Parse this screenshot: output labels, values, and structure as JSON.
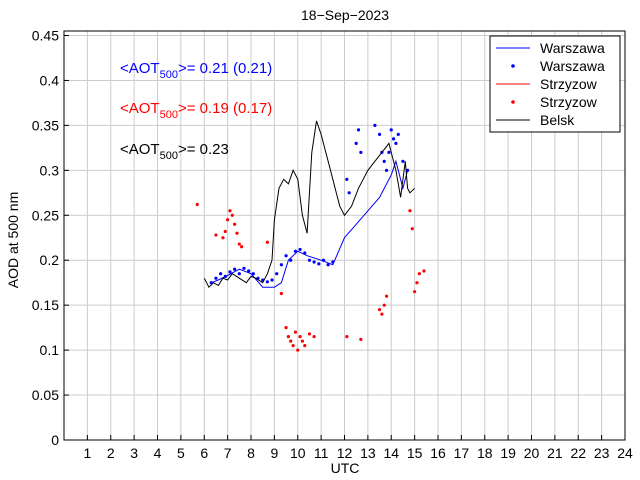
{
  "chart_data": {
    "type": "line",
    "title": "18−Sep−2023",
    "xlabel": "UTC",
    "ylabel": "AOD at 500 nm",
    "xlim": [
      0,
      24
    ],
    "ylim": [
      0,
      0.455
    ],
    "x_ticks": [
      1,
      2,
      3,
      4,
      5,
      6,
      7,
      8,
      9,
      10,
      11,
      12,
      13,
      14,
      15,
      16,
      17,
      18,
      19,
      20,
      21,
      22,
      23,
      24
    ],
    "y_ticks": [
      0,
      0.05,
      0.1,
      0.15,
      0.2,
      0.25,
      0.3,
      0.35,
      0.4,
      0.45
    ],
    "y_tick_labels": [
      "0",
      "0.05",
      "0.1",
      "0.15",
      "0.2",
      "0.25",
      "0.3",
      "0.35",
      "0.4",
      "0.45"
    ],
    "grid": true,
    "legend_position": "top-right",
    "annotations": [
      {
        "prefix": "<AOT",
        "sub": "500",
        "suffix": ">= 0.21 (0.21)",
        "color": "#0000ff"
      },
      {
        "prefix": "<AOT",
        "sub": "500",
        "suffix": ">= 0.19 (0.17)",
        "color": "#ff0000"
      },
      {
        "prefix": "<AOT",
        "sub": "500",
        "suffix": ">= 0.23",
        "color": "#000000"
      }
    ],
    "series": [
      {
        "name": "Warszawa",
        "style": "line",
        "color": "#0000ff",
        "x": [
          6.3,
          6.6,
          7.0,
          7.5,
          8.0,
          8.5,
          9.0,
          9.3,
          9.6,
          10.0,
          10.4,
          11.0,
          11.5,
          12.0,
          12.5,
          13.0,
          13.5,
          14.0,
          14.2,
          14.5,
          14.7
        ],
        "y": [
          0.175,
          0.178,
          0.183,
          0.19,
          0.185,
          0.17,
          0.17,
          0.175,
          0.2,
          0.21,
          0.205,
          0.2,
          0.195,
          0.225,
          0.24,
          0.255,
          0.27,
          0.295,
          0.31,
          0.28,
          0.3
        ]
      },
      {
        "name": "Warszawa",
        "style": "dots",
        "color": "#0000ff",
        "x": [
          6.3,
          6.5,
          6.7,
          6.9,
          7.1,
          7.3,
          7.5,
          7.7,
          7.9,
          8.1,
          8.3,
          8.5,
          8.7,
          8.9,
          9.1,
          9.3,
          9.5,
          9.7,
          9.9,
          10.1,
          10.3,
          10.5,
          10.7,
          10.9,
          11.1,
          11.3,
          11.5,
          12.1,
          12.2,
          12.5,
          12.6,
          12.7,
          13.3,
          13.5,
          13.6,
          13.7,
          13.8,
          13.9,
          14.0,
          14.1,
          14.2,
          14.3,
          14.5,
          14.7
        ],
        "y": [
          0.175,
          0.18,
          0.185,
          0.182,
          0.187,
          0.19,
          0.185,
          0.191,
          0.188,
          0.185,
          0.18,
          0.178,
          0.176,
          0.178,
          0.185,
          0.195,
          0.205,
          0.2,
          0.21,
          0.212,
          0.208,
          0.2,
          0.198,
          0.196,
          0.2,
          0.195,
          0.198,
          0.29,
          0.275,
          0.33,
          0.345,
          0.32,
          0.35,
          0.34,
          0.32,
          0.31,
          0.3,
          0.32,
          0.345,
          0.335,
          0.33,
          0.34,
          0.31,
          0.3
        ]
      },
      {
        "name": "Strzyzow",
        "style": "line",
        "color": "#ff0000",
        "x": [],
        "y": []
      },
      {
        "name": "Strzyzow",
        "style": "dots",
        "color": "#ff0000",
        "x": [
          5.7,
          6.5,
          6.8,
          6.9,
          7.0,
          7.1,
          7.2,
          7.3,
          7.4,
          7.5,
          7.6,
          8.7,
          9.3,
          9.5,
          9.6,
          9.7,
          9.8,
          9.9,
          10.0,
          10.1,
          10.2,
          10.3,
          10.5,
          10.7,
          12.1,
          12.7,
          13.5,
          13.6,
          13.7,
          13.8,
          14.8,
          14.9,
          15.0,
          15.1,
          15.2,
          15.4
        ],
        "y": [
          0.262,
          0.228,
          0.225,
          0.232,
          0.245,
          0.255,
          0.25,
          0.24,
          0.23,
          0.218,
          0.215,
          0.22,
          0.163,
          0.125,
          0.115,
          0.11,
          0.105,
          0.12,
          0.1,
          0.115,
          0.11,
          0.105,
          0.118,
          0.115,
          0.115,
          0.112,
          0.145,
          0.14,
          0.15,
          0.16,
          0.255,
          0.235,
          0.165,
          0.175,
          0.185,
          0.188
        ]
      },
      {
        "name": "Belsk",
        "style": "line",
        "color": "#000000",
        "x": [
          6.0,
          6.2,
          6.4,
          6.6,
          6.8,
          7.0,
          7.2,
          7.5,
          7.8,
          8.0,
          8.2,
          8.5,
          8.7,
          8.9,
          9.0,
          9.2,
          9.4,
          9.6,
          9.8,
          10.0,
          10.2,
          10.4,
          10.6,
          10.8,
          11.0,
          11.2,
          11.4,
          11.6,
          11.8,
          12.0,
          12.3,
          12.6,
          12.8,
          13.0,
          13.3,
          13.6,
          13.9,
          14.2,
          14.4,
          14.6,
          14.7,
          14.8,
          15.0
        ],
        "y": [
          0.18,
          0.17,
          0.175,
          0.172,
          0.18,
          0.178,
          0.185,
          0.18,
          0.175,
          0.182,
          0.18,
          0.175,
          0.185,
          0.2,
          0.245,
          0.28,
          0.29,
          0.285,
          0.3,
          0.29,
          0.25,
          0.23,
          0.32,
          0.355,
          0.34,
          0.32,
          0.3,
          0.28,
          0.26,
          0.25,
          0.26,
          0.28,
          0.29,
          0.3,
          0.31,
          0.32,
          0.33,
          0.3,
          0.27,
          0.31,
          0.28,
          0.275,
          0.28
        ]
      }
    ]
  }
}
